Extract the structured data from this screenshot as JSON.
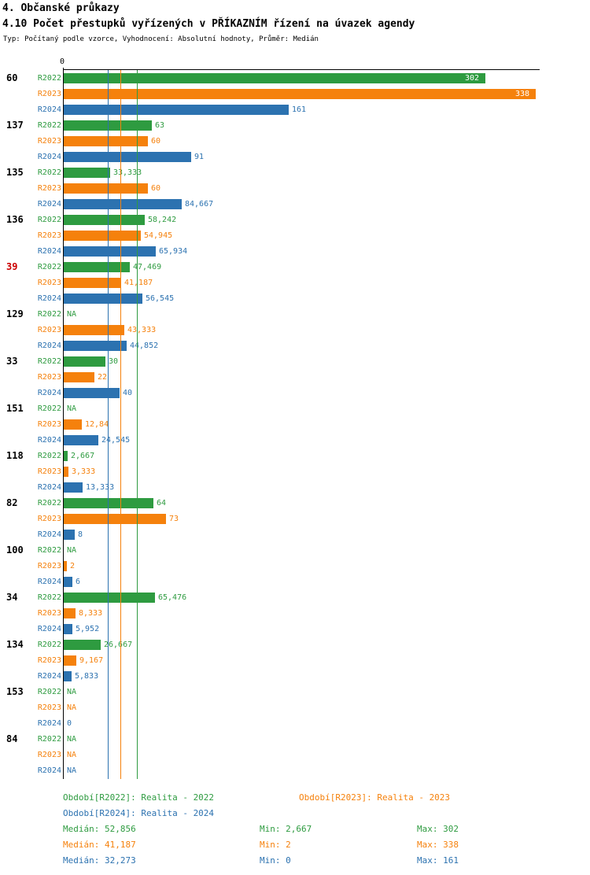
{
  "header": {
    "title": "4. Občanské průkazy",
    "subtitle": "4.10 Počet přestupků vyřízených v PŘÍKAZNÍM řízení na úvazek agendy",
    "meta": "Typ: Počítaný podle vzorce, Vyhodnocení: Absolutní hodnoty, Průměr: Medián"
  },
  "chart_data": {
    "type": "bar",
    "orientation": "horizontal",
    "x_axis": {
      "zero_label": "0",
      "max": 338
    },
    "highlight_color": "#CC0000",
    "na_label": "NA",
    "series": [
      {
        "name": "R2022",
        "color": "#2E9B40",
        "median": 52.856
      },
      {
        "name": "R2023",
        "color": "#F5810C",
        "median": 41.187
      },
      {
        "name": "R2024",
        "color": "#2C72B0",
        "median": 32.273
      }
    ],
    "groups": [
      {
        "id": "60",
        "highlight": false,
        "values": [
          302,
          338,
          161
        ],
        "labels": [
          "302",
          "338",
          "161"
        ]
      },
      {
        "id": "137",
        "highlight": false,
        "values": [
          63,
          60,
          91
        ],
        "labels": [
          "63",
          "60",
          "91"
        ]
      },
      {
        "id": "135",
        "highlight": false,
        "values": [
          33.333,
          60,
          84.667
        ],
        "labels": [
          "33,333",
          "60",
          "84,667"
        ]
      },
      {
        "id": "136",
        "highlight": false,
        "values": [
          58.242,
          54.945,
          65.934
        ],
        "labels": [
          "58,242",
          "54,945",
          "65,934"
        ]
      },
      {
        "id": "39",
        "highlight": true,
        "values": [
          47.469,
          41.187,
          56.545
        ],
        "labels": [
          "47,469",
          "41,187",
          "56,545"
        ]
      },
      {
        "id": "129",
        "highlight": false,
        "values": [
          null,
          43.333,
          44.852
        ],
        "labels": [
          "NA",
          "43,333",
          "44,852"
        ]
      },
      {
        "id": "33",
        "highlight": false,
        "values": [
          30,
          22,
          40
        ],
        "labels": [
          "30",
          "22",
          "40"
        ]
      },
      {
        "id": "151",
        "highlight": false,
        "values": [
          null,
          12.84,
          24.545
        ],
        "labels": [
          "NA",
          "12,84",
          "24,545"
        ]
      },
      {
        "id": "118",
        "highlight": false,
        "values": [
          2.667,
          3.333,
          13.333
        ],
        "labels": [
          "2,667",
          "3,333",
          "13,333"
        ]
      },
      {
        "id": "82",
        "highlight": false,
        "values": [
          64,
          73,
          8
        ],
        "labels": [
          "64",
          "73",
          "8"
        ]
      },
      {
        "id": "100",
        "highlight": false,
        "values": [
          null,
          2,
          6
        ],
        "labels": [
          "NA",
          "2",
          "6"
        ]
      },
      {
        "id": "34",
        "highlight": false,
        "values": [
          65.476,
          8.333,
          5.952
        ],
        "labels": [
          "65,476",
          "8,333",
          "5,952"
        ]
      },
      {
        "id": "134",
        "highlight": false,
        "values": [
          26.667,
          9.167,
          5.833
        ],
        "labels": [
          "26,667",
          "9,167",
          "5,833"
        ]
      },
      {
        "id": "153",
        "highlight": false,
        "values": [
          null,
          null,
          0
        ],
        "labels": [
          "NA",
          "NA",
          "0"
        ]
      },
      {
        "id": "84",
        "highlight": false,
        "values": [
          null,
          null,
          null
        ],
        "labels": [
          "NA",
          "NA",
          "NA"
        ]
      }
    ]
  },
  "legend": {
    "periods": [
      {
        "text": "Období[R2022]: Realita - 2022",
        "color": "#2E9B40"
      },
      {
        "text": "Období[R2023]: Realita - 2023",
        "color": "#F5810C"
      },
      {
        "text": "Období[R2024]: Realita - 2024",
        "color": "#2C72B0"
      }
    ],
    "stats": [
      {
        "median": "Medián: 52,856",
        "min": "Min: 2,667",
        "max": "Max: 302",
        "color": "#2E9B40"
      },
      {
        "median": "Medián: 41,187",
        "min": "Min: 2",
        "max": "Max: 338",
        "color": "#F5810C"
      },
      {
        "median": "Medián: 32,273",
        "min": "Min: 0",
        "max": "Max: 161",
        "color": "#2C72B0"
      }
    ]
  }
}
